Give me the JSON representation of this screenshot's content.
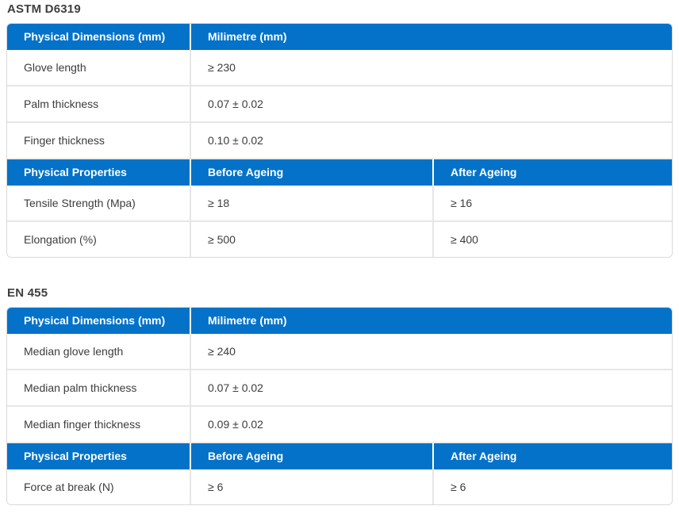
{
  "colors": {
    "header_bg": "#0472c8",
    "header_text": "#ffffff",
    "heading_text": "#3f3f3f",
    "cell_text": "#3c3c3c",
    "divider": "#e6e6e6"
  },
  "sections": [
    {
      "heading": "ASTM D6319",
      "dimensions": {
        "headers": [
          "Physical Dimensions (mm)",
          "Milimetre (mm)"
        ],
        "rows": [
          [
            "Glove length",
            "≥ 230"
          ],
          [
            "Palm thickness",
            "0.07 ± 0.02"
          ],
          [
            "Finger thickness",
            "0.10 ± 0.02"
          ]
        ]
      },
      "properties": {
        "headers": [
          "Physical Properties",
          "Before Ageing",
          "After Ageing"
        ],
        "rows": [
          [
            "Tensile Strength (Mpa)",
            "≥ 18",
            "≥ 16"
          ],
          [
            "Elongation (%)",
            "≥ 500",
            "≥ 400"
          ]
        ]
      }
    },
    {
      "heading": "EN 455",
      "dimensions": {
        "headers": [
          "Physical Dimensions (mm)",
          "Milimetre (mm)"
        ],
        "rows": [
          [
            "Median glove length",
            "≥ 240"
          ],
          [
            "Median palm thickness",
            "0.07 ± 0.02"
          ],
          [
            "Median finger thickness",
            "0.09 ± 0.02"
          ]
        ]
      },
      "properties": {
        "headers": [
          "Physical Properties",
          "Before Ageing",
          "After Ageing"
        ],
        "rows": [
          [
            "Force at break (N)",
            "≥ 6",
            "≥ 6"
          ]
        ]
      }
    }
  ]
}
